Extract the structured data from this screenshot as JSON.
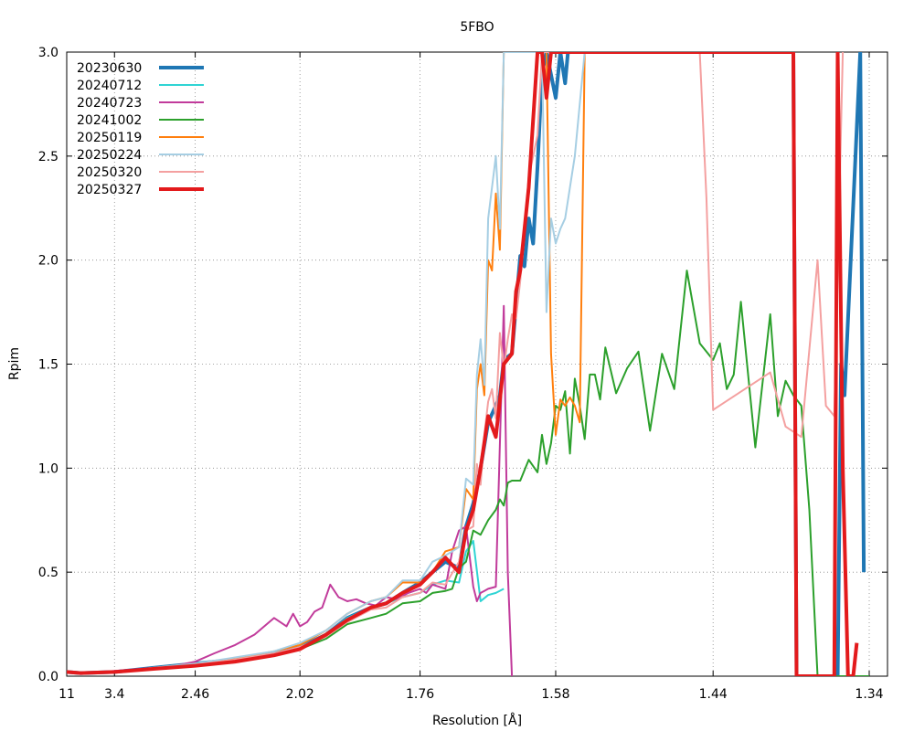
{
  "chart_data": {
    "type": "line",
    "title": "5FBO",
    "xlabel": "Resolution [Å]",
    "ylabel": "Rpim",
    "x_axis_scale": "inverse-cube-resolution",
    "xlim": [
      11,
      1.33
    ],
    "ylim": [
      0,
      3.0
    ],
    "grid": true,
    "legend_position": "top-left",
    "x_ticks": [
      11,
      3.4,
      2.46,
      2.02,
      1.76,
      1.58,
      1.44,
      1.34
    ],
    "x_tick_labels": [
      "11",
      "3.4",
      "2.46",
      "2.02",
      "1.76",
      "1.58",
      "1.44",
      "1.34"
    ],
    "y_ticks": [
      0,
      0.5,
      1.0,
      1.5,
      2.0,
      2.5,
      3.0
    ],
    "y_tick_labels": [
      "0.0",
      "0.5",
      "1.0",
      "1.5",
      "2.0",
      "2.5",
      "3.0"
    ],
    "series": [
      {
        "name": "20230630",
        "color": "#1f77b4",
        "width": 4,
        "x": [
          11,
          5.0,
          3.4,
          2.8,
          2.46,
          2.25,
          2.1,
          2.02,
          1.95,
          1.9,
          1.85,
          1.82,
          1.79,
          1.76,
          1.74,
          1.72,
          1.7,
          1.69,
          1.68,
          1.67,
          1.66,
          1.65,
          1.645,
          1.64,
          1.63,
          1.62,
          1.615,
          1.61,
          1.605,
          1.6,
          1.595,
          1.59,
          1.58,
          1.575,
          1.57,
          1.567,
          1.563,
          1.56,
          1.557,
          1.553,
          1.55,
          1.385,
          1.383,
          1.381,
          1.358,
          1.356,
          1.354,
          1.345,
          1.343
        ],
        "y": [
          0.02,
          0.015,
          0.02,
          0.04,
          0.06,
          0.08,
          0.11,
          0.14,
          0.2,
          0.28,
          0.33,
          0.35,
          0.4,
          0.45,
          0.5,
          0.55,
          0.52,
          0.72,
          0.83,
          1.0,
          1.22,
          1.3,
          1.35,
          1.52,
          1.55,
          2.02,
          1.97,
          2.2,
          2.08,
          2.45,
          2.9,
          3.0,
          2.78,
          3.0,
          2.85,
          3.0,
          3.0,
          3.0,
          3.0,
          3.0,
          3.0,
          3.0,
          0.0,
          0.0,
          0.0,
          1.5,
          1.35,
          3.0,
          0.5
        ]
      },
      {
        "name": "20240712",
        "color": "#2fd4d4",
        "width": 2,
        "x": [
          11,
          5.0,
          3.4,
          2.8,
          2.46,
          2.25,
          2.1,
          2.02,
          1.95,
          1.9,
          1.85,
          1.82,
          1.79,
          1.76,
          1.74,
          1.72,
          1.7,
          1.69,
          1.68,
          1.67,
          1.66,
          1.65,
          1.64
        ],
        "y": [
          0.02,
          0.015,
          0.02,
          0.04,
          0.06,
          0.08,
          0.11,
          0.14,
          0.2,
          0.28,
          0.33,
          0.35,
          0.38,
          0.4,
          0.44,
          0.46,
          0.45,
          0.6,
          0.65,
          0.36,
          0.39,
          0.4,
          0.42
        ]
      },
      {
        "name": "20240723",
        "color": "#c13b9b",
        "width": 2,
        "x": [
          11,
          5.0,
          3.4,
          2.8,
          2.6,
          2.46,
          2.35,
          2.25,
          2.17,
          2.1,
          2.06,
          2.04,
          2.02,
          2.0,
          1.98,
          1.96,
          1.94,
          1.92,
          1.9,
          1.88,
          1.86,
          1.84,
          1.82,
          1.8,
          1.78,
          1.76,
          1.75,
          1.74,
          1.73,
          1.72,
          1.71,
          1.7,
          1.69,
          1.68,
          1.675,
          1.67,
          1.665,
          1.66,
          1.65,
          1.64,
          1.635,
          1.63
        ],
        "y": [
          0.02,
          0.015,
          0.025,
          0.04,
          0.05,
          0.07,
          0.11,
          0.15,
          0.2,
          0.28,
          0.24,
          0.3,
          0.24,
          0.26,
          0.31,
          0.33,
          0.44,
          0.38,
          0.36,
          0.37,
          0.35,
          0.34,
          0.38,
          0.37,
          0.4,
          0.42,
          0.4,
          0.44,
          0.43,
          0.42,
          0.6,
          0.7,
          0.72,
          0.43,
          0.36,
          0.4,
          0.41,
          0.42,
          0.43,
          1.78,
          0.5,
          0.0
        ]
      },
      {
        "name": "20241002",
        "color": "#2ca02c",
        "width": 2,
        "x": [
          11,
          5.0,
          3.4,
          2.8,
          2.46,
          2.25,
          2.1,
          2.02,
          1.95,
          1.9,
          1.85,
          1.82,
          1.79,
          1.76,
          1.74,
          1.72,
          1.71,
          1.7,
          1.69,
          1.68,
          1.67,
          1.66,
          1.65,
          1.645,
          1.64,
          1.635,
          1.63,
          1.62,
          1.61,
          1.6,
          1.595,
          1.59,
          1.585,
          1.58,
          1.575,
          1.57,
          1.565,
          1.56,
          1.555,
          1.55,
          1.545,
          1.54,
          1.535,
          1.53,
          1.52,
          1.51,
          1.5,
          1.49,
          1.48,
          1.47,
          1.46,
          1.45,
          1.44,
          1.435,
          1.43,
          1.425,
          1.42,
          1.41,
          1.4,
          1.395,
          1.39,
          1.385,
          1.38,
          1.375,
          1.37,
          1.365,
          1.36,
          1.355,
          1.35,
          1.345,
          1.34
        ],
        "y": [
          0.02,
          0.015,
          0.02,
          0.035,
          0.05,
          0.07,
          0.1,
          0.13,
          0.18,
          0.25,
          0.28,
          0.3,
          0.35,
          0.36,
          0.4,
          0.41,
          0.42,
          0.52,
          0.55,
          0.7,
          0.68,
          0.75,
          0.8,
          0.85,
          0.82,
          0.93,
          0.94,
          0.94,
          1.04,
          0.98,
          1.16,
          1.02,
          1.12,
          1.3,
          1.28,
          1.37,
          1.07,
          1.43,
          1.3,
          1.14,
          1.45,
          1.45,
          1.33,
          1.58,
          1.36,
          1.48,
          1.56,
          1.18,
          1.55,
          1.38,
          1.95,
          1.6,
          1.52,
          1.6,
          1.38,
          1.45,
          1.8,
          1.1,
          1.74,
          1.25,
          1.42,
          1.35,
          1.3,
          0.8,
          0.0,
          0.0,
          0.0,
          0.0,
          0.0,
          0.0,
          0.0
        ]
      },
      {
        "name": "20250119",
        "color": "#ff7f0e",
        "width": 2,
        "x": [
          11,
          5.0,
          3.4,
          2.8,
          2.46,
          2.25,
          2.1,
          2.02,
          1.95,
          1.9,
          1.85,
          1.82,
          1.79,
          1.76,
          1.74,
          1.72,
          1.7,
          1.69,
          1.68,
          1.675,
          1.67,
          1.665,
          1.66,
          1.655,
          1.65,
          1.645,
          1.64,
          1.635,
          1.63,
          1.625,
          1.62,
          1.59,
          1.585,
          1.58,
          1.575,
          1.57,
          1.565,
          1.56,
          1.555,
          1.55,
          1.545
        ],
        "y": [
          0.02,
          0.015,
          0.02,
          0.04,
          0.06,
          0.085,
          0.12,
          0.15,
          0.22,
          0.3,
          0.36,
          0.38,
          0.45,
          0.45,
          0.5,
          0.6,
          0.62,
          0.9,
          0.85,
          1.38,
          1.5,
          1.35,
          2.0,
          1.95,
          2.32,
          2.05,
          3.0,
          3.0,
          3.0,
          3.0,
          3.0,
          3.0,
          1.55,
          1.16,
          1.33,
          1.3,
          1.34,
          1.3,
          1.22,
          3.0,
          3.0
        ]
      },
      {
        "name": "20250224",
        "color": "#a6cee3",
        "width": 2,
        "x": [
          11,
          5.0,
          3.4,
          2.8,
          2.46,
          2.25,
          2.1,
          2.02,
          1.95,
          1.9,
          1.85,
          1.82,
          1.79,
          1.76,
          1.74,
          1.72,
          1.7,
          1.69,
          1.68,
          1.675,
          1.67,
          1.665,
          1.66,
          1.655,
          1.65,
          1.645,
          1.64,
          1.635,
          1.63,
          1.62,
          1.61,
          1.6,
          1.595,
          1.59,
          1.585,
          1.58,
          1.575,
          1.57,
          1.56,
          1.55
        ],
        "y": [
          0.02,
          0.015,
          0.02,
          0.04,
          0.06,
          0.09,
          0.12,
          0.16,
          0.22,
          0.3,
          0.36,
          0.38,
          0.46,
          0.46,
          0.55,
          0.58,
          0.62,
          0.95,
          0.92,
          1.45,
          1.62,
          1.4,
          2.2,
          2.35,
          2.5,
          2.15,
          3.0,
          3.0,
          3.0,
          3.0,
          3.0,
          3.0,
          3.0,
          1.75,
          2.2,
          2.08,
          2.15,
          2.2,
          2.5,
          3.0
        ]
      },
      {
        "name": "20250320",
        "color": "#f4a0a0",
        "width": 2,
        "x": [
          11,
          5.0,
          3.4,
          2.8,
          2.46,
          2.25,
          2.1,
          2.02,
          1.95,
          1.9,
          1.85,
          1.82,
          1.79,
          1.76,
          1.74,
          1.72,
          1.7,
          1.69,
          1.68,
          1.675,
          1.67,
          1.665,
          1.66,
          1.655,
          1.65,
          1.645,
          1.64,
          1.635,
          1.63,
          1.625,
          1.62,
          1.61,
          1.6,
          1.595,
          1.59,
          1.585,
          1.58,
          1.575,
          1.57,
          1.565,
          1.56,
          1.55,
          1.545,
          1.54,
          1.535,
          1.53,
          1.525,
          1.52,
          1.515,
          1.51,
          1.505,
          1.5,
          1.495,
          1.49,
          1.485,
          1.48,
          1.475,
          1.47,
          1.465,
          1.46,
          1.455,
          1.45,
          1.445,
          1.44,
          1.4,
          1.39,
          1.38,
          1.37,
          1.365,
          1.36,
          1.355
        ],
        "y": [
          0.02,
          0.015,
          0.02,
          0.035,
          0.055,
          0.08,
          0.11,
          0.14,
          0.19,
          0.26,
          0.32,
          0.33,
          0.38,
          0.4,
          0.45,
          0.44,
          0.55,
          0.7,
          0.72,
          1.02,
          0.92,
          1.16,
          1.32,
          1.38,
          1.24,
          1.65,
          1.48,
          1.62,
          1.74,
          1.72,
          1.9,
          2.4,
          2.6,
          3.0,
          3.0,
          3.0,
          3.0,
          3.0,
          3.0,
          3.0,
          3.0,
          3.0,
          3.0,
          3.0,
          3.0,
          3.0,
          3.0,
          3.0,
          3.0,
          3.0,
          3.0,
          3.0,
          3.0,
          3.0,
          3.0,
          3.0,
          3.0,
          3.0,
          3.0,
          3.0,
          3.0,
          3.0,
          2.3,
          1.28,
          1.46,
          1.2,
          1.15,
          2.0,
          1.3,
          1.25,
          3.0
        ]
      },
      {
        "name": "20250327",
        "color": "#e31a1c",
        "width": 4,
        "x": [
          11,
          5.0,
          3.4,
          2.8,
          2.46,
          2.25,
          2.1,
          2.02,
          1.95,
          1.9,
          1.85,
          1.82,
          1.79,
          1.76,
          1.74,
          1.72,
          1.7,
          1.69,
          1.68,
          1.67,
          1.66,
          1.65,
          1.64,
          1.63,
          1.625,
          1.62,
          1.61,
          1.6,
          1.595,
          1.59,
          1.585,
          1.58,
          1.575,
          1.4,
          1.385,
          1.383,
          1.36,
          1.358,
          1.355,
          1.352,
          1.349,
          1.347
        ],
        "y": [
          0.02,
          0.015,
          0.02,
          0.035,
          0.05,
          0.07,
          0.1,
          0.13,
          0.2,
          0.27,
          0.33,
          0.35,
          0.4,
          0.44,
          0.5,
          0.57,
          0.5,
          0.7,
          0.8,
          1.0,
          1.25,
          1.15,
          1.5,
          1.55,
          1.85,
          1.95,
          2.35,
          3.0,
          3.0,
          2.78,
          3.0,
          3.0,
          3.0,
          3.0,
          3.0,
          0.0,
          0.0,
          3.0,
          1.0,
          0.0,
          0.0,
          0.16
        ]
      }
    ]
  }
}
